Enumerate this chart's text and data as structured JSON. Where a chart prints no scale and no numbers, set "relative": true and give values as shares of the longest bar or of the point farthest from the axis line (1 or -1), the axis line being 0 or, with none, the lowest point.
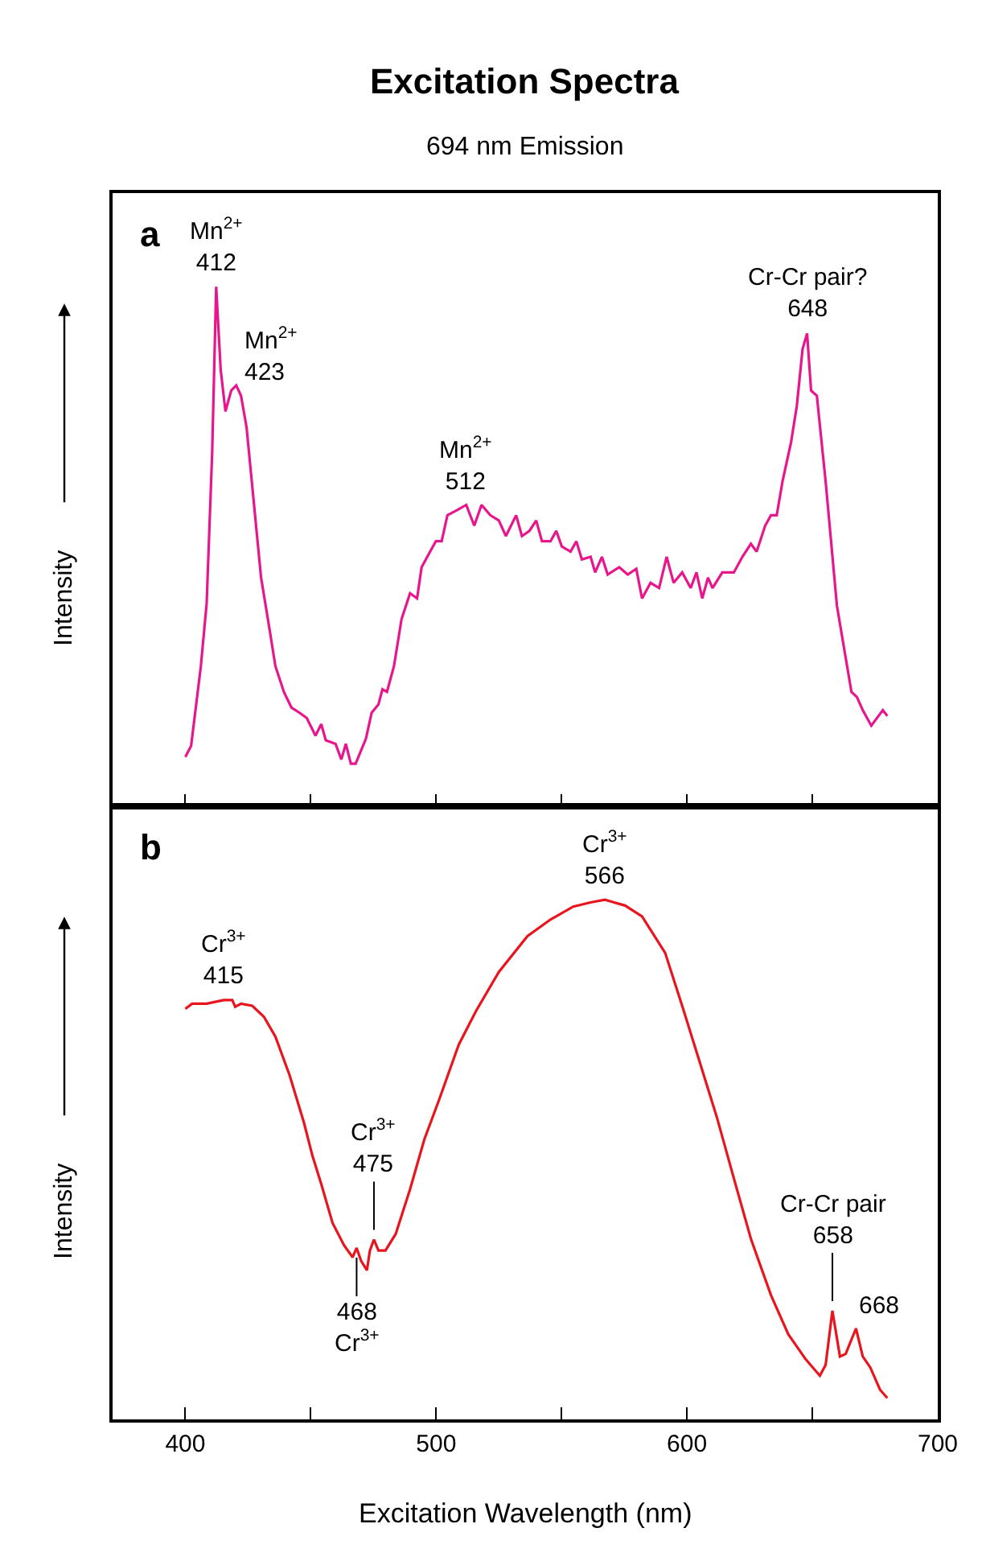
{
  "chart_data": [
    {
      "type": "line",
      "title": "Excitation Spectra",
      "subtitle": "694 nm Emission",
      "ylabel": "Intensity",
      "relative": true,
      "color": "#e8168c",
      "tick_labels": false,
      "grid": false,
      "xlim": [
        371,
        700
      ],
      "xticks": [
        400,
        {
          "value": 450,
          "label": null
        },
        500,
        {
          "value": 550,
          "label": null
        },
        600,
        {
          "value": 650,
          "label": null
        },
        700
      ],
      "x": [
        400,
        402.3,
        406.2,
        408.5,
        410.7,
        412.3,
        414.1,
        416,
        418.3,
        420.3,
        422.2,
        424.4,
        427.2,
        430.2,
        433.6,
        435.9,
        439.3,
        442.3,
        445.5,
        448.4,
        451.9,
        454.2,
        456,
        459.9,
        462.2,
        464,
        466,
        467.9,
        472,
        474.3,
        477,
        478.6,
        480.4,
        483.2,
        486.2,
        489.6,
        492.4,
        494.2,
        497.6,
        499.9,
        502.2,
        504.5,
        508.4,
        512,
        515.2,
        518.1,
        521.6,
        525,
        527.8,
        531.9,
        534.2,
        537.2,
        539.9,
        542.2,
        545.6,
        547.9,
        550.1,
        553.6,
        555.9,
        558.1,
        561.6,
        563.4,
        566.1,
        568.4,
        573,
        576.4,
        579.8,
        582.1,
        585.5,
        588.9,
        591.9,
        594.7,
        598.1,
        601.5,
        603.8,
        606.1,
        608.4,
        610.2,
        614.1,
        618.7,
        622.1,
        625.5,
        627.8,
        631.2,
        633.5,
        635.8,
        638.1,
        641.5,
        643.8,
        646.1,
        647.9,
        649.5,
        651.8,
        655.3,
        659.8,
        662.1,
        665.6,
        667.8,
        670.1,
        673.5,
        678.1,
        679.9
      ],
      "values": [
        0.095,
        0.116,
        0.27,
        0.39,
        0.68,
        1.0,
        0.84,
        0.76,
        0.8,
        0.81,
        0.79,
        0.73,
        0.59,
        0.44,
        0.34,
        0.27,
        0.22,
        0.19,
        0.18,
        0.17,
        0.136,
        0.158,
        0.127,
        0.12,
        0.09,
        0.12,
        0.082,
        0.082,
        0.13,
        0.18,
        0.196,
        0.225,
        0.22,
        0.27,
        0.36,
        0.41,
        0.4,
        0.46,
        0.49,
        0.51,
        0.51,
        0.56,
        0.57,
        0.58,
        0.54,
        0.58,
        0.56,
        0.55,
        0.52,
        0.56,
        0.52,
        0.53,
        0.55,
        0.51,
        0.51,
        0.53,
        0.5,
        0.49,
        0.51,
        0.475,
        0.48,
        0.45,
        0.48,
        0.446,
        0.46,
        0.446,
        0.457,
        0.4,
        0.43,
        0.42,
        0.48,
        0.43,
        0.45,
        0.42,
        0.45,
        0.4,
        0.44,
        0.42,
        0.45,
        0.45,
        0.48,
        0.505,
        0.49,
        0.54,
        0.56,
        0.56,
        0.625,
        0.7,
        0.77,
        0.88,
        0.91,
        0.8,
        0.79,
        0.625,
        0.386,
        0.32,
        0.22,
        0.21,
        0.185,
        0.155,
        0.185,
        0.174
      ],
      "annotations": [
        "a",
        {
          "text": "Mn$^{2+}$\n412",
          "x": 412.3,
          "y": 1.0
        },
        {
          "text": "Mn$^{2+}$\n423",
          "x": 422.2,
          "y": 0.79
        },
        {
          "text": "Mn$^{2+}$\n512",
          "x": 512,
          "y": 0.58
        },
        {
          "text": "Cr-Cr pair?\n648",
          "x": 647.9,
          "y": 0.91
        }
      ]
    },
    {
      "type": "line",
      "ylabel": "Intensity",
      "xlabel": "Excitation Wavelength (nm)",
      "relative": true,
      "color": "#e8141e",
      "tick_labels": "x",
      "grid": false,
      "xlim": [
        371,
        700
      ],
      "xticks": [
        400,
        {
          "value": 450,
          "label": null
        },
        500,
        {
          "value": 550,
          "label": null
        },
        600,
        {
          "value": 650,
          "label": null
        },
        700
      ],
      "x": [
        400,
        402.7,
        408.5,
        415.3,
        418.7,
        419.9,
        422.2,
        426.7,
        431.3,
        435.9,
        441.6,
        447.3,
        450.7,
        454.2,
        458.7,
        463.3,
        466.7,
        468.3,
        470.1,
        472.4,
        473.6,
        475.2,
        477,
        479.8,
        483.9,
        489.6,
        495.3,
        501.1,
        509,
        515.9,
        525,
        536.4,
        545.6,
        554.7,
        561.6,
        567.3,
        575.3,
        582.1,
        591.3,
        598.1,
        605,
        611.9,
        618.7,
        625.6,
        633.5,
        640.4,
        647.3,
        653,
        655.3,
        658,
        661,
        663.3,
        667.4,
        670.1,
        673.1,
        677,
        679.9
      ],
      "values": [
        0.79,
        0.8,
        0.8,
        0.807,
        0.807,
        0.794,
        0.8,
        0.796,
        0.775,
        0.737,
        0.662,
        0.571,
        0.507,
        0.453,
        0.378,
        0.335,
        0.312,
        0.33,
        0.305,
        0.287,
        0.325,
        0.346,
        0.325,
        0.325,
        0.357,
        0.443,
        0.539,
        0.614,
        0.721,
        0.786,
        0.861,
        0.93,
        0.962,
        0.987,
        0.995,
        1.0,
        0.989,
        0.968,
        0.898,
        0.796,
        0.689,
        0.582,
        0.464,
        0.346,
        0.239,
        0.164,
        0.116,
        0.084,
        0.105,
        0.209,
        0.121,
        0.126,
        0.175,
        0.121,
        0.1,
        0.057,
        0.041
      ],
      "annotations": [
        "b",
        {
          "text": "Cr$^{3+}$\n415",
          "x": 415.3,
          "y": 0.807
        },
        {
          "text": "Cr$^{3+}$\n475",
          "x": 475.2,
          "y": 0.346
        },
        {
          "text": "468\nCr$^{3+}$",
          "x": 468.3,
          "y": 0.33
        },
        {
          "text": "Cr$^{3+}$\n566",
          "x": 567.3,
          "y": 1.0
        },
        {
          "text": "Cr-Cr pair\n658",
          "x": 658,
          "y": 0.209
        },
        {
          "text": "668",
          "x": 667.4,
          "y": 0.175
        }
      ]
    }
  ]
}
